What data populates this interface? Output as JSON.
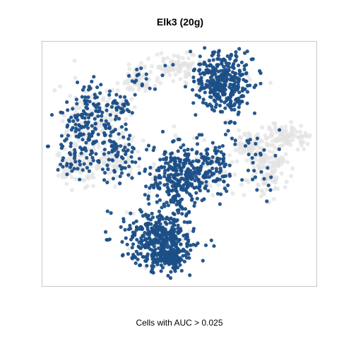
{
  "chart_data": {
    "type": "scatter",
    "title": "Elk3 (20g)",
    "xlabel": "Cells with AUC > 0.025",
    "ylabel": "",
    "grid": false,
    "axes_ticks": false,
    "colors": {
      "active": "#1b4f87",
      "inactive": "#e3e3e3",
      "frame": "#c8c8c8"
    },
    "series": [
      {
        "role": "inactive",
        "color": "#e3e3e3",
        "opacity": 0.75
      },
      {
        "role": "active",
        "color": "#1b4f87",
        "opacity": 0.95
      }
    ]
  }
}
